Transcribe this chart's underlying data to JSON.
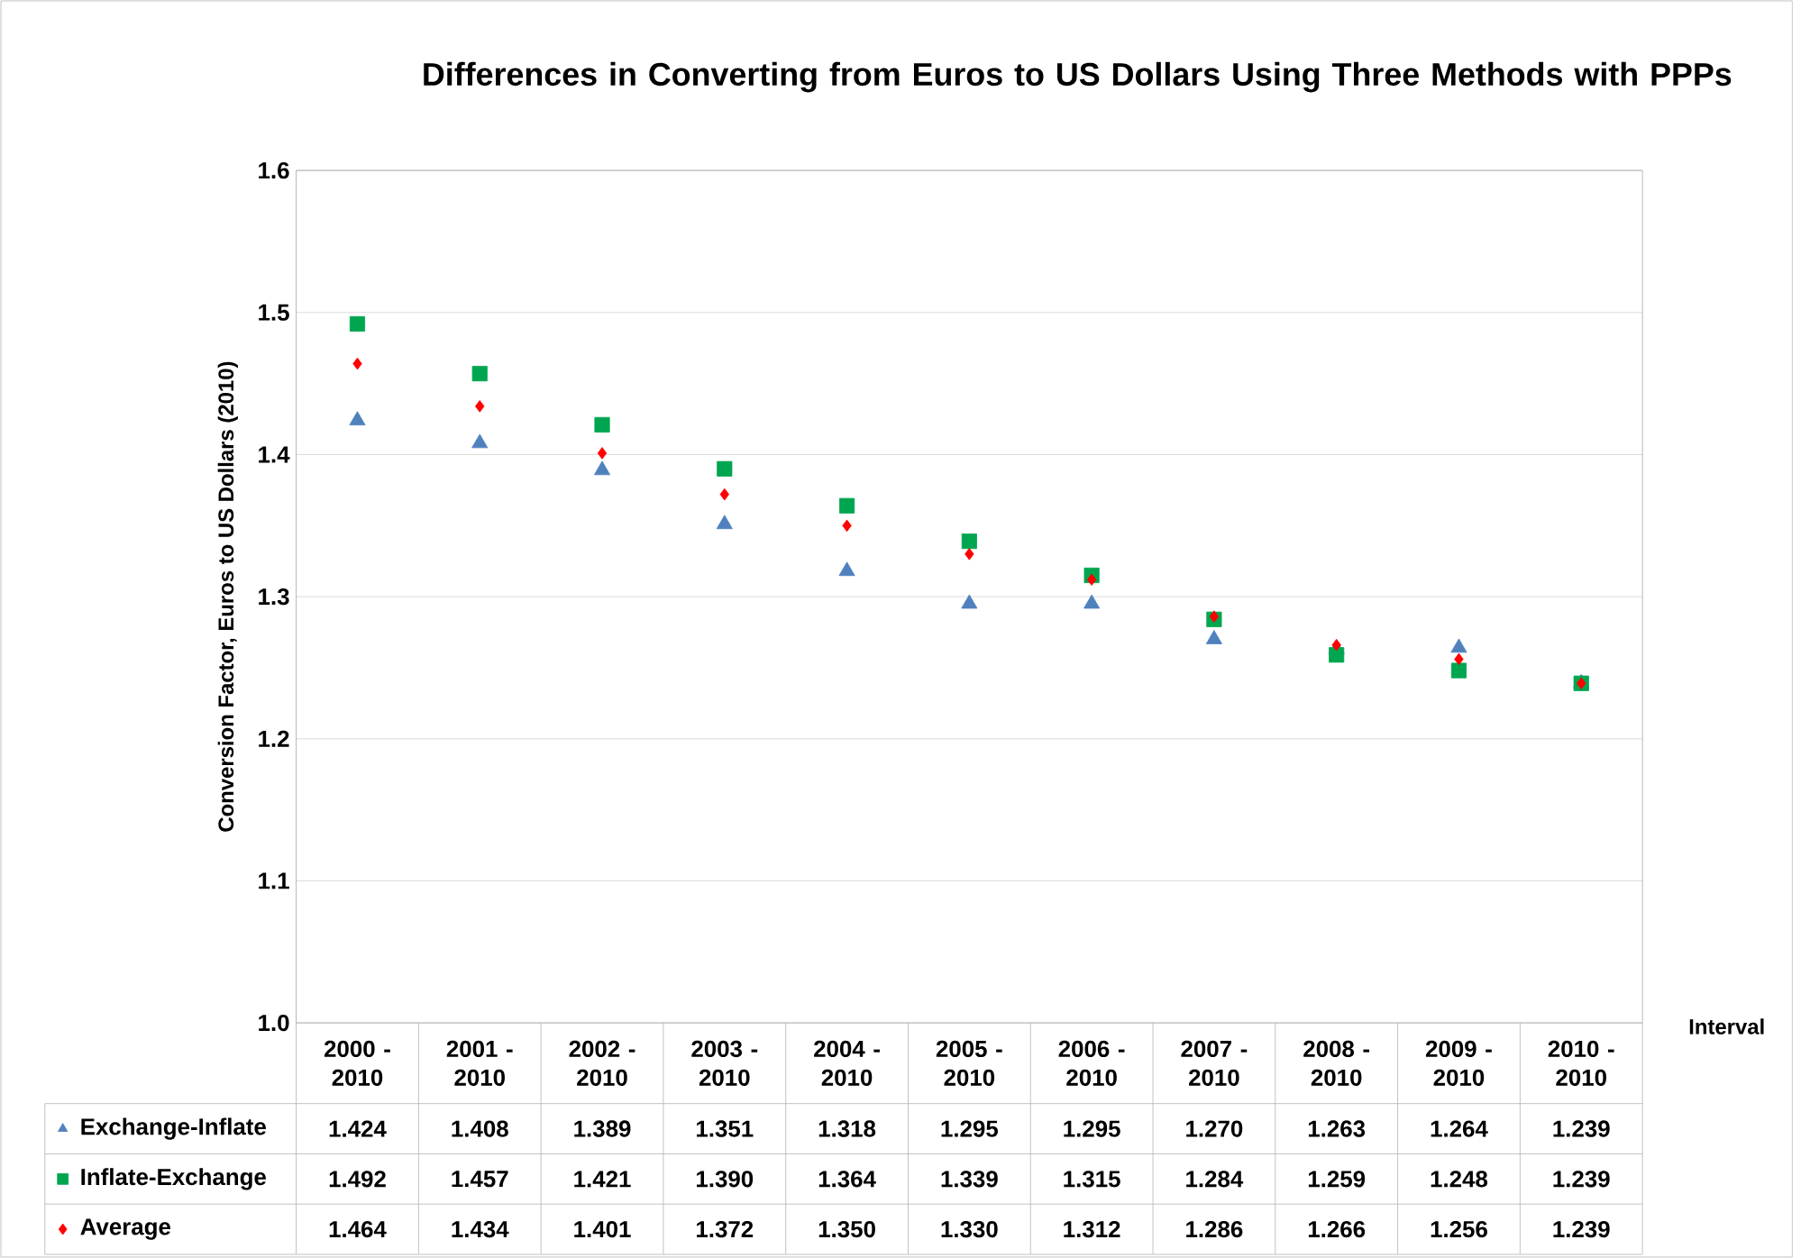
{
  "chart_data": {
    "type": "scatter",
    "title": "Differences in Converting from Euros to US Dollars Using Three Methods with PPPs",
    "xlabel": "Interval",
    "ylabel": "Conversion Factor, Euros to US Dollars (2010)",
    "categories": [
      "2000 - 2010",
      "2001 - 2010",
      "2002 - 2010",
      "2003 - 2010",
      "2004 - 2010",
      "2005 - 2010",
      "2006 - 2010",
      "2007 - 2010",
      "2008 - 2010",
      "2009 - 2010",
      "2010 - 2010"
    ],
    "ylim": [
      1.0,
      1.6
    ],
    "yticks": [
      {
        "value": 1.0,
        "label": "1.0"
      },
      1.1,
      1.2,
      1.3,
      1.4,
      1.5,
      1.6
    ],
    "grid": "y",
    "legend": "bottom",
    "series": [
      {
        "name": "Exchange-Inflate",
        "color": "#4f81bd",
        "marker": "triangle",
        "values": [
          1.424,
          1.408,
          1.389,
          1.351,
          1.318,
          1.295,
          1.295,
          1.27,
          1.263,
          1.264,
          1.239
        ],
        "value_labels": [
          "1.424",
          "1.408",
          "1.389",
          "1.351",
          "1.318",
          "1.295",
          "1.295",
          "1.270",
          "1.263",
          "1.264",
          "1.239"
        ]
      },
      {
        "name": "Inflate-Exchange",
        "color": "#00a550",
        "marker": "square",
        "values": [
          1.492,
          1.457,
          1.421,
          1.39,
          1.364,
          1.339,
          1.315,
          1.284,
          1.259,
          1.248,
          1.239
        ],
        "value_labels": [
          "1.492",
          "1.457",
          "1.421",
          "1.390",
          "1.364",
          "1.339",
          "1.315",
          "1.284",
          "1.259",
          "1.248",
          "1.239"
        ]
      },
      {
        "name": "Average",
        "color": "#ff0000",
        "marker": "diamond",
        "values": [
          1.464,
          1.434,
          1.401,
          1.372,
          1.35,
          1.33,
          1.312,
          1.286,
          1.266,
          1.256,
          1.239
        ],
        "value_labels": [
          "1.464",
          "1.434",
          "1.401",
          "1.372",
          "1.350",
          "1.330",
          "1.312",
          "1.286",
          "1.266",
          "1.256",
          "1.239"
        ]
      }
    ]
  }
}
